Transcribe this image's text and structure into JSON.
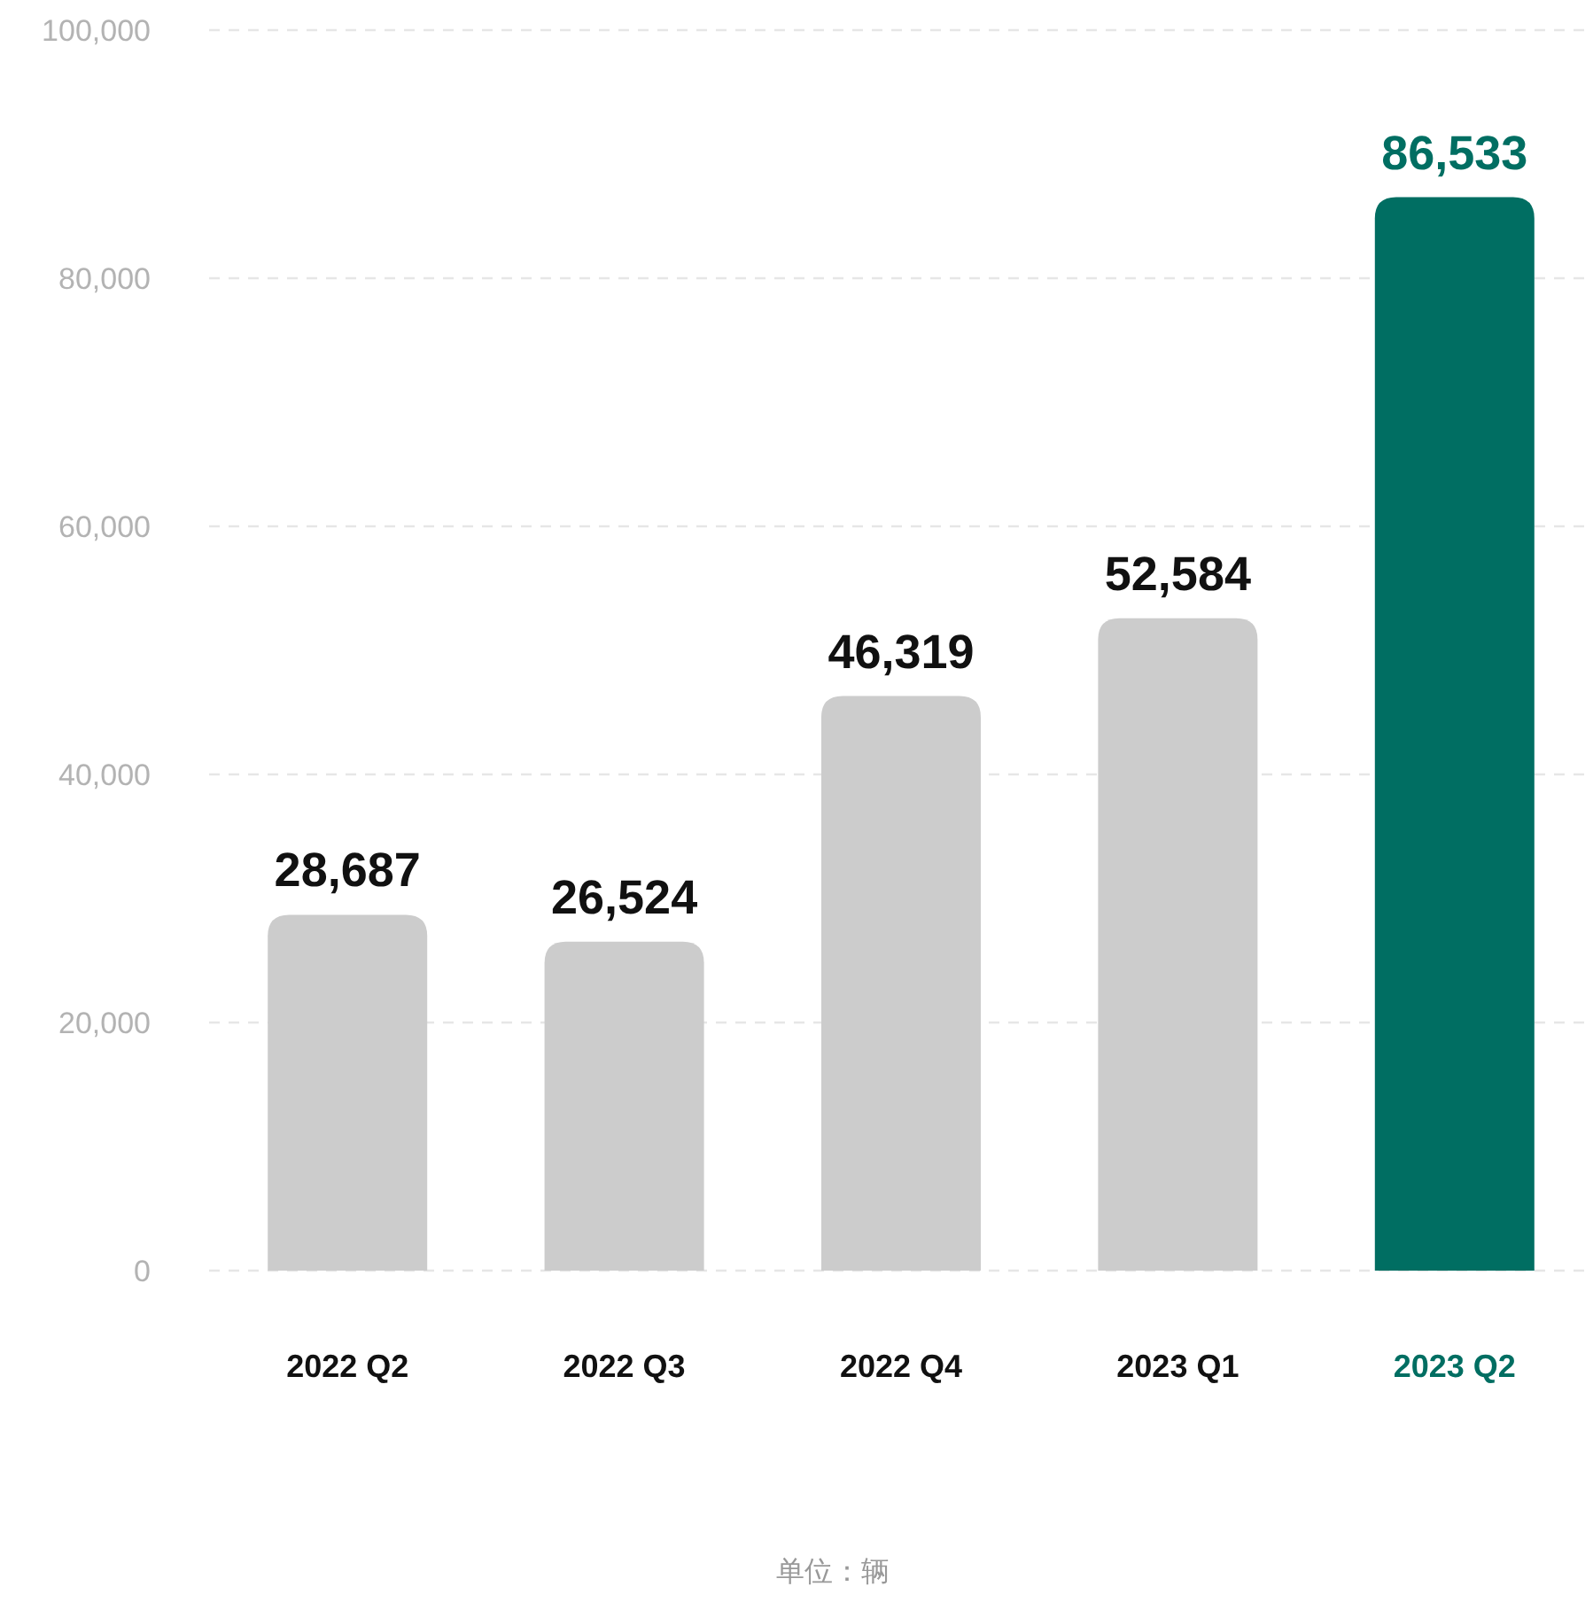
{
  "chart_data": {
    "type": "bar",
    "categories": [
      "2022 Q2",
      "2022 Q3",
      "2022 Q4",
      "2023 Q1",
      "2023 Q2"
    ],
    "values": [
      28687,
      26524,
      46319,
      52584,
      86533
    ],
    "colors": [
      "#cccccc",
      "#cccccc",
      "#cccccc",
      "#cccccc",
      "#006e62"
    ],
    "value_labels": [
      "28,687",
      "26,524",
      "46,319",
      "52,584",
      "86,533"
    ],
    "ylim": [
      0,
      100000
    ],
    "yticks": [
      {
        "value": 0,
        "label": "0"
      },
      {
        "value": 20000,
        "label": "20,000"
      },
      {
        "value": 40000,
        "label": "40,000"
      },
      {
        "value": 60000,
        "label": "60,000"
      },
      {
        "value": 80000,
        "label": "80,000"
      },
      {
        "value": 100000,
        "label": "100,000"
      }
    ],
    "grid": "y",
    "annotations": [
      "单位：辆"
    ]
  }
}
